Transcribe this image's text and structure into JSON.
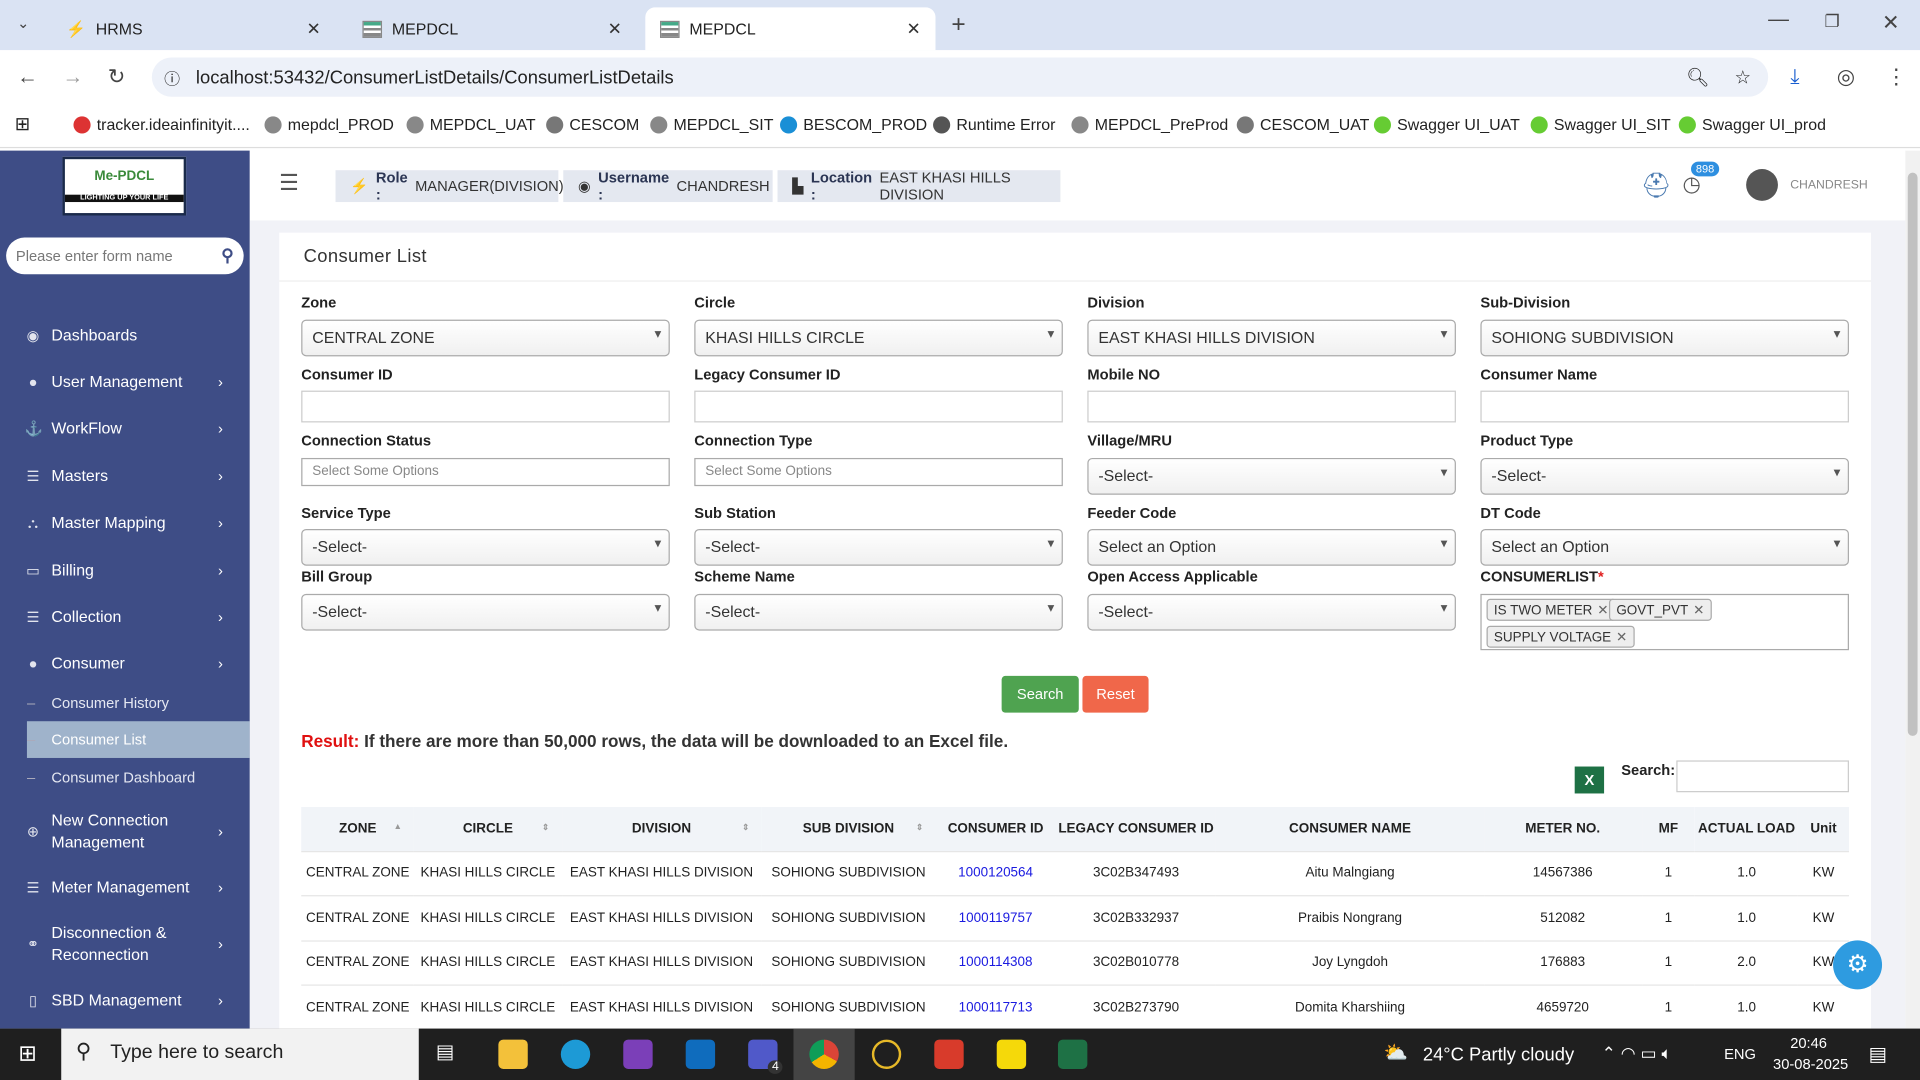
{
  "browser": {
    "tabs": [
      {
        "title": "HRMS"
      },
      {
        "title": "MEPDCL"
      },
      {
        "title": "MEPDCL",
        "active": true
      }
    ],
    "url": "localhost:53432/ConsumerListDetails/ConsumerListDetails",
    "bookmarks": [
      "tracker.ideainfinityit....",
      "mepdcl_PROD",
      "MEPDCL_UAT",
      "CESCOM",
      "MEPDCL_SIT",
      "BESCOM_PROD",
      "Runtime Error",
      "MEPDCL_PreProd",
      "CESCOM_UAT",
      "Swagger UI_UAT",
      "Swagger UI_SIT",
      "Swagger UI_prod"
    ]
  },
  "sidebar": {
    "logo_text": "Me-PDCL",
    "logo_tagline": "LIGHTING UP YOUR LIFE",
    "search_placeholder": "Please enter form name",
    "items": [
      {
        "label": "Dashboards",
        "icon": "dashboard-icon",
        "chevron": false
      },
      {
        "label": "User Management",
        "icon": "user-icon",
        "chevron": true
      },
      {
        "label": "WorkFlow",
        "icon": "anchor-icon",
        "chevron": true
      },
      {
        "label": "Masters",
        "icon": "list-icon",
        "chevron": true
      },
      {
        "label": "Master Mapping",
        "icon": "sitemap-icon",
        "chevron": true
      },
      {
        "label": "Billing",
        "icon": "monitor-icon",
        "chevron": true
      },
      {
        "label": "Collection",
        "icon": "list-icon",
        "chevron": true
      },
      {
        "label": "Consumer",
        "icon": "user-icon",
        "chevron": true
      },
      {
        "label": "New Connection Management",
        "icon": "plus-circle-icon",
        "chevron": true
      },
      {
        "label": "Meter Management",
        "icon": "list-icon",
        "chevron": true
      },
      {
        "label": "Disconnection & Reconnection",
        "icon": "link-icon",
        "chevron": true
      },
      {
        "label": "SBD Management",
        "icon": "mobile-icon",
        "chevron": true
      }
    ],
    "subitems": [
      {
        "label": "Consumer History"
      },
      {
        "label": "Consumer List",
        "active": true
      },
      {
        "label": "Consumer Dashboard"
      }
    ]
  },
  "header": {
    "role_label": "Role :",
    "role": "MANAGER(DIVISION)",
    "username_label": "Username :",
    "username": "CHANDRESH",
    "location_label": "Location :",
    "location": "EAST KHASI HILLS DIVISION",
    "notification_count": "898",
    "user": "CHANDRESH"
  },
  "page": {
    "title": "Consumer List",
    "fields": [
      {
        "label": "Zone",
        "type": "select",
        "value": "CENTRAL ZONE"
      },
      {
        "label": "Circle",
        "type": "select",
        "value": "KHASI HILLS CIRCLE"
      },
      {
        "label": "Division",
        "type": "select",
        "value": "EAST KHASI HILLS DIVISION"
      },
      {
        "label": "Sub-Division",
        "type": "select",
        "value": "SOHIONG SUBDIVISION"
      },
      {
        "label": "Consumer ID",
        "type": "input",
        "value": ""
      },
      {
        "label": "Legacy Consumer ID",
        "type": "input",
        "value": ""
      },
      {
        "label": "Mobile NO",
        "type": "input",
        "value": ""
      },
      {
        "label": "Consumer Name",
        "type": "input",
        "value": ""
      },
      {
        "label": "Connection Status",
        "type": "multi",
        "value": "Select Some Options"
      },
      {
        "label": "Connection Type",
        "type": "multi",
        "value": "Select Some Options"
      },
      {
        "label": "Village/MRU",
        "type": "select",
        "value": "-Select-"
      },
      {
        "label": "Product Type",
        "type": "select",
        "value": "-Select-"
      },
      {
        "label": "Service Type",
        "type": "select",
        "value": "-Select-"
      },
      {
        "label": "Sub Station",
        "type": "select",
        "value": "-Select-"
      },
      {
        "label": "Feeder Code",
        "type": "select",
        "value": "Select an Option"
      },
      {
        "label": "DT Code",
        "type": "select",
        "value": "Select an Option"
      },
      {
        "label": "Bill Group",
        "type": "select",
        "value": "-Select-"
      },
      {
        "label": "Scheme Name",
        "type": "select",
        "value": "-Select-"
      },
      {
        "label": "Open Access Applicable",
        "type": "select",
        "value": "-Select-"
      }
    ],
    "consumerlist_label": "CONSUMERLIST",
    "required_mark": "*",
    "consumerlist_chips": [
      "IS TWO METER",
      "GOVT_PVT",
      "SUPPLY VOLTAGE"
    ],
    "search_button": "Search",
    "reset_button": "Reset",
    "result_label": "Result:",
    "result_text": "If there are more than 50,000 rows, the data will be downloaded to an Excel file.",
    "table_search_label": "Search:",
    "table": {
      "columns": [
        "ZONE",
        "CIRCLE",
        "DIVISION",
        "SUB DIVISION",
        "CONSUMER ID",
        "LEGACY CONSUMER ID",
        "CONSUMER NAME",
        "METER NO.",
        "MF",
        "ACTUAL LOAD",
        "Unit"
      ],
      "rows": [
        [
          "CENTRAL ZONE",
          "KHASI HILLS CIRCLE",
          "EAST KHASI HILLS DIVISION",
          "SOHIONG SUBDIVISION",
          "1000120564",
          "3C02B347493",
          "Aitu Malngiang",
          "14567386",
          "1",
          "1.0",
          "KW"
        ],
        [
          "CENTRAL ZONE",
          "KHASI HILLS CIRCLE",
          "EAST KHASI HILLS DIVISION",
          "SOHIONG SUBDIVISION",
          "1000119757",
          "3C02B332937",
          "Praibis Nongrang",
          "512082",
          "1",
          "1.0",
          "KW"
        ],
        [
          "CENTRAL ZONE",
          "KHASI HILLS CIRCLE",
          "EAST KHASI HILLS DIVISION",
          "SOHIONG SUBDIVISION",
          "1000114308",
          "3C02B010778",
          "Joy Lyngdoh",
          "176883",
          "1",
          "2.0",
          "KW"
        ],
        [
          "CENTRAL ZONE",
          "KHASI HILLS CIRCLE",
          "EAST KHASI HILLS DIVISION",
          "SOHIONG SUBDIVISION",
          "1000117713",
          "3C02B273790",
          "Domita Kharshiing",
          "4659720",
          "1",
          "1.0",
          "KW"
        ]
      ]
    }
  },
  "taskbar": {
    "search_placeholder": "Type here to search",
    "weather": "24°C  Partly cloudy",
    "lang": "ENG",
    "time": "20:46",
    "date": "30-08-2025",
    "teams_badge": "4"
  }
}
